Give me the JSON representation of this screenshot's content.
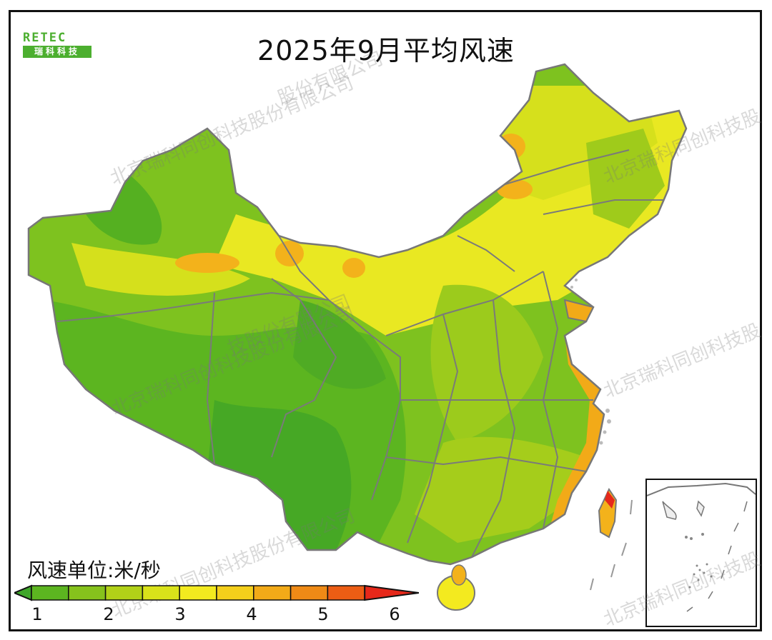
{
  "title": "2025年9月平均风速",
  "logo": {
    "top": "RETEC",
    "bottom": "瑞科科技"
  },
  "watermark_text": "北京瑞科同创科技股份有限公司",
  "watermark_partial": "北京瑞科同创科技股",
  "watermark_partial2": "股份有限公司",
  "watermark_partial3": "技股份有限公司",
  "legend": {
    "unit_label": "风速单位:米/秒",
    "ticks": [
      "1",
      "2",
      "3",
      "4",
      "5",
      "6"
    ],
    "colors": [
      "#3fa62a",
      "#5cb520",
      "#86c21c",
      "#b1d118",
      "#d9e21a",
      "#f3ea1f",
      "#f4cf1b",
      "#f2aa18",
      "#ef8a16",
      "#ec5d14",
      "#e6281a"
    ]
  },
  "map_colors": {
    "low": "#4fad22",
    "mid_low": "#7ec21f",
    "mid": "#c3d91c",
    "mid_high": "#ecea22",
    "high": "#f3b21b",
    "very_high": "#ec5d14",
    "border": "#7a7a7a"
  }
}
